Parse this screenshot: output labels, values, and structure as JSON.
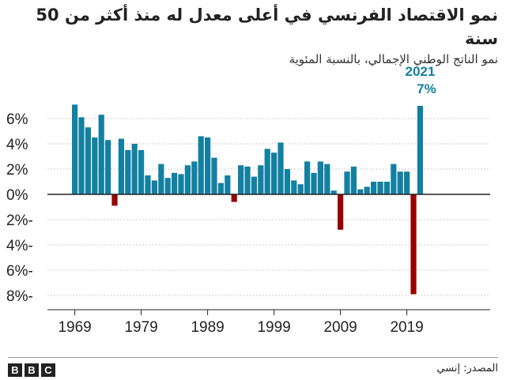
{
  "header": {
    "title": "نمو الاقتصاد الفرنسي في أعلى معدل له منذ أكثر من 50 سنة",
    "subtitle": "نمو الناتج الوطني الإجمالي، بالنسبة المئوية"
  },
  "footer": {
    "source": "المصدر: إنسي",
    "logo_letters": [
      "B",
      "B",
      "C"
    ]
  },
  "colors": {
    "positive": "#1380a1",
    "negative": "#990000",
    "axis": "#222222",
    "grid": "#cccccc"
  },
  "chart_data": {
    "type": "bar",
    "title": "نمو الاقتصاد الفرنسي في أعلى معدل له منذ أكثر من 50 سنة",
    "subtitle": "نمو الناتج الوطني الإجمالي، بالنسبة المئوية",
    "x": [
      1969,
      1970,
      1971,
      1972,
      1973,
      1974,
      1975,
      1976,
      1977,
      1978,
      1979,
      1980,
      1981,
      1982,
      1983,
      1984,
      1985,
      1986,
      1987,
      1988,
      1989,
      1990,
      1991,
      1992,
      1993,
      1994,
      1995,
      1996,
      1997,
      1998,
      1999,
      2000,
      2001,
      2002,
      2003,
      2004,
      2005,
      2006,
      2007,
      2008,
      2009,
      2010,
      2011,
      2012,
      2013,
      2014,
      2015,
      2016,
      2017,
      2018,
      2019,
      2020,
      2021
    ],
    "values": [
      7.1,
      6.1,
      5.3,
      4.5,
      6.3,
      4.3,
      -0.9,
      4.4,
      3.5,
      4.0,
      3.5,
      1.5,
      1.1,
      2.4,
      1.3,
      1.7,
      1.6,
      2.3,
      2.6,
      4.6,
      4.5,
      2.9,
      0.9,
      1.5,
      -0.6,
      2.3,
      2.2,
      1.4,
      2.3,
      3.6,
      3.3,
      4.1,
      2.0,
      1.1,
      0.8,
      2.6,
      1.7,
      2.6,
      2.4,
      0.3,
      -2.8,
      1.8,
      2.2,
      0.4,
      0.6,
      1.0,
      1.0,
      1.0,
      2.4,
      1.8,
      1.8,
      -7.9,
      7.0
    ],
    "x_tick_labels": [
      "1969",
      "1979",
      "1989",
      "1999",
      "2009",
      "2019"
    ],
    "x_ticks": [
      1969,
      1979,
      1989,
      1999,
      2009,
      2019
    ],
    "y_tick_labels": [
      "6%",
      "4%",
      "2%",
      "0%",
      "2%-",
      "4%-",
      "6%-",
      "8%-"
    ],
    "y_ticks": [
      6,
      4,
      2,
      0,
      -2,
      -4,
      -6,
      -8
    ],
    "ylim": [
      -8.5,
      7.5
    ],
    "grid": true,
    "annotation": {
      "year": "2021",
      "value": "7%"
    }
  }
}
